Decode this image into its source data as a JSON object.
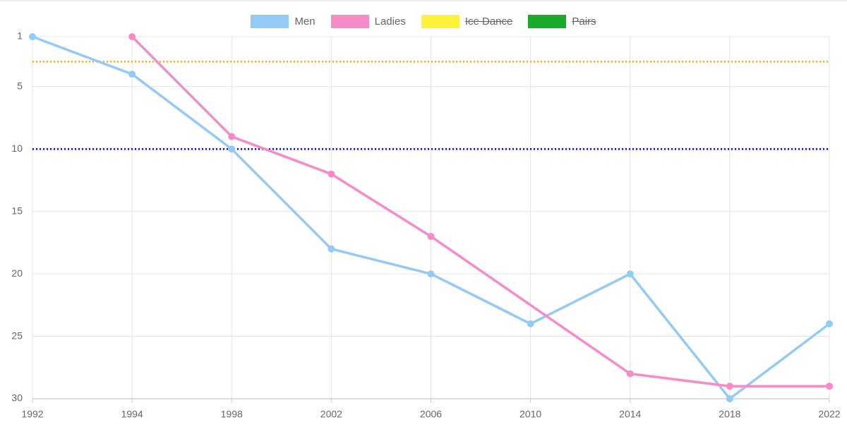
{
  "chart_data": {
    "type": "line",
    "categories": [
      "1992",
      "1994",
      "1998",
      "2002",
      "2006",
      "2010",
      "2014",
      "2018",
      "2022"
    ],
    "series": [
      {
        "name": "Men",
        "color": "#94cbf5",
        "values": [
          1,
          4,
          10,
          18,
          20,
          24,
          20,
          30,
          24
        ]
      },
      {
        "name": "Ladies",
        "color": "#f78bc8",
        "values": [
          null,
          1,
          9,
          12,
          17,
          null,
          28,
          29,
          29
        ]
      },
      {
        "name": "Ice Dance",
        "color": "#fff23b",
        "hidden": true
      },
      {
        "name": "Pairs",
        "color": "#1aab2a",
        "hidden": true
      }
    ],
    "reference_lines": [
      {
        "value": 3,
        "color": "#f5a623"
      },
      {
        "value": 10,
        "color": "#0000ee"
      }
    ],
    "ylim": [
      1,
      30
    ],
    "y_reversed": true,
    "yticks": [
      1,
      5,
      10,
      15,
      20,
      25,
      30
    ],
    "grid": true,
    "span_gaps": true,
    "legend": "top"
  }
}
